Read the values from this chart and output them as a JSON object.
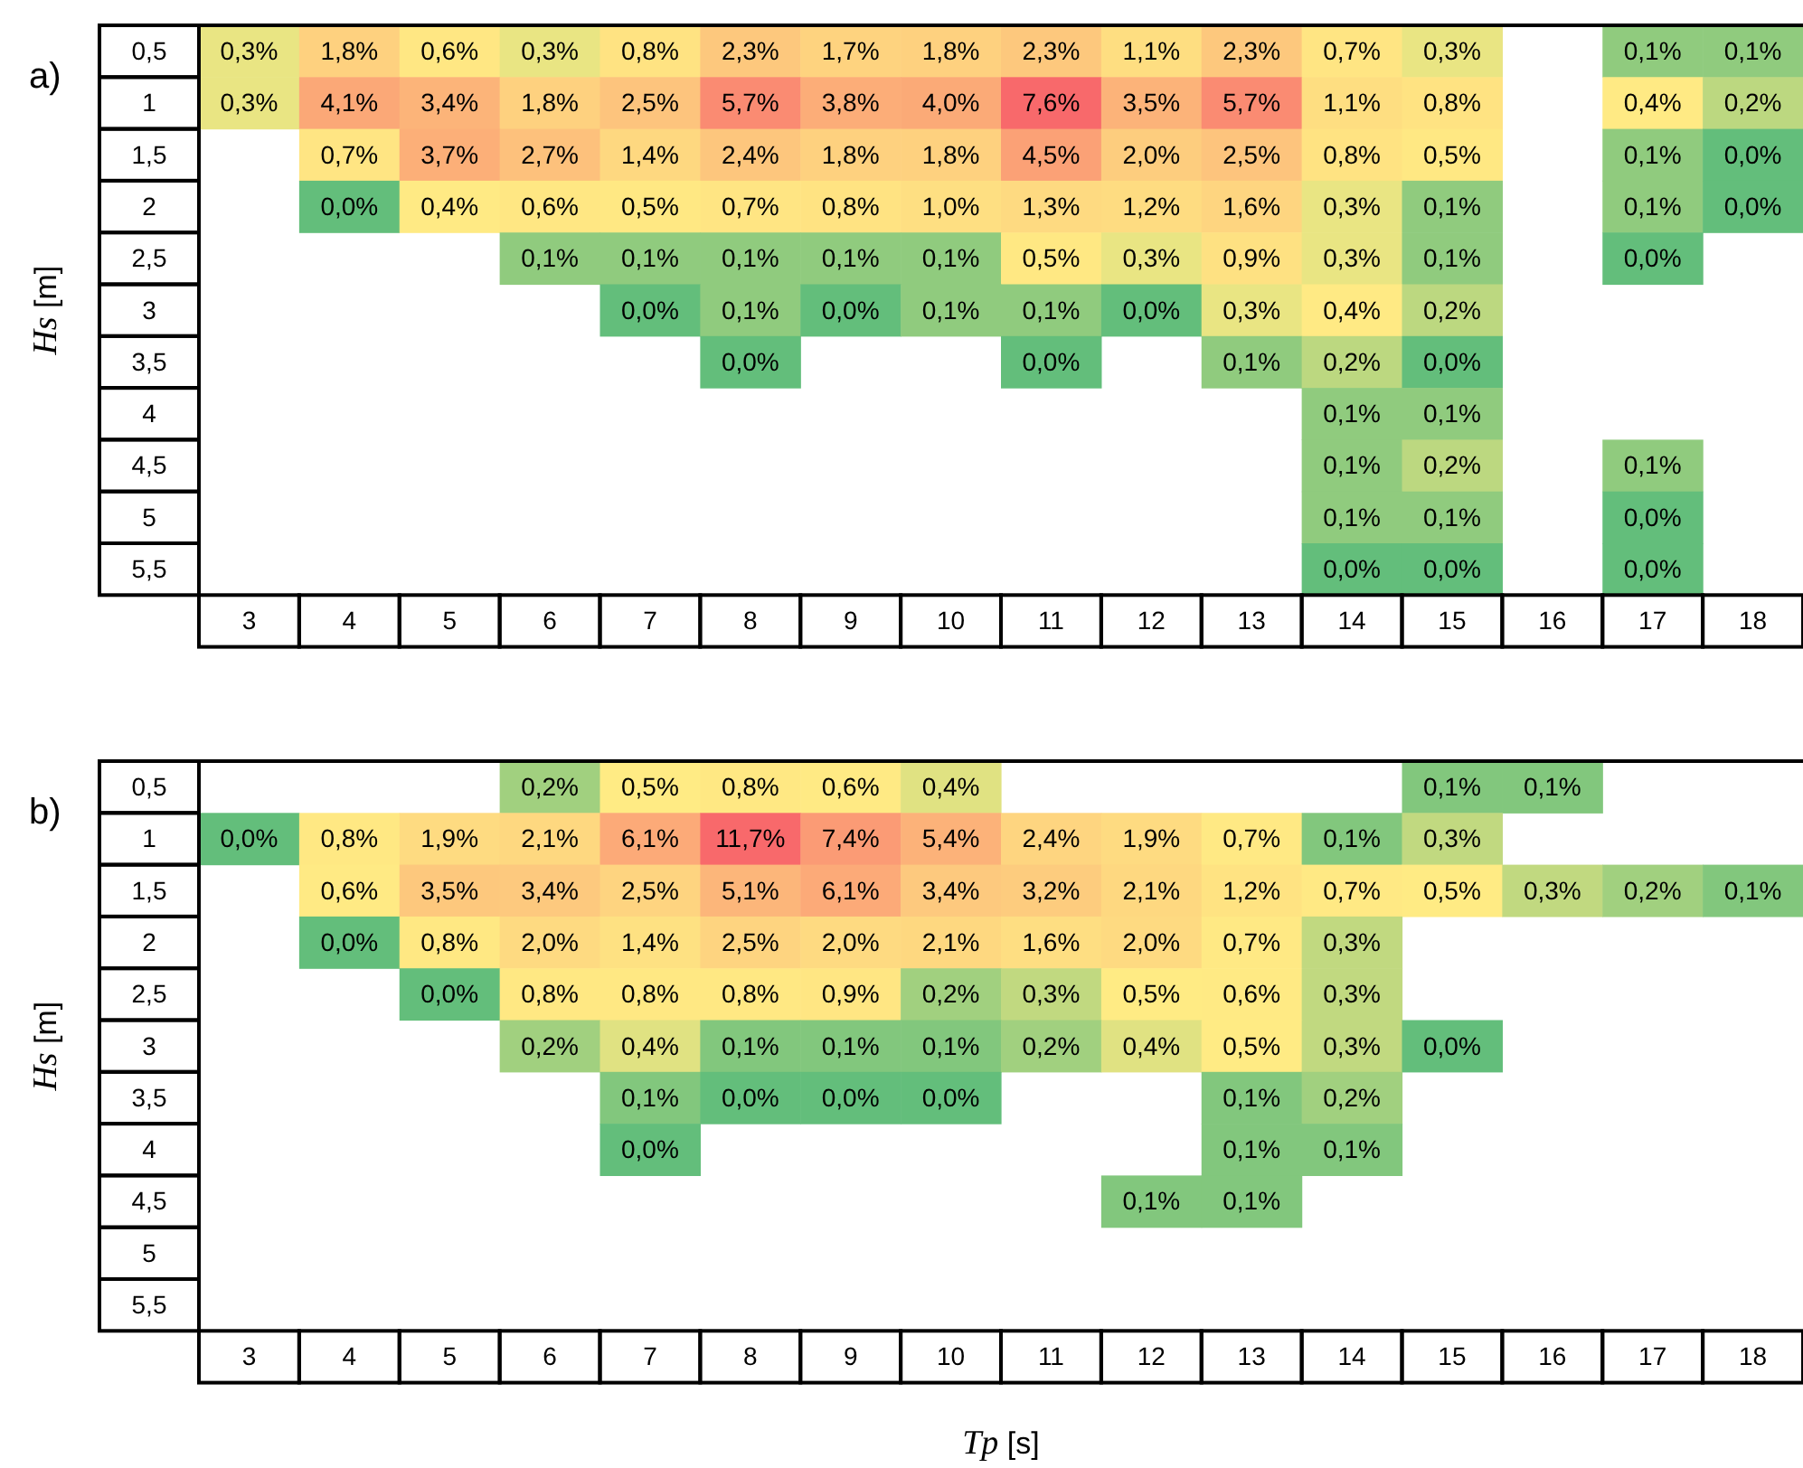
{
  "chart_data": [
    {
      "type": "heatmap",
      "title": "a)",
      "ylabel": "Hs [m]",
      "categories": [
        "3",
        "4",
        "5",
        "6",
        "7",
        "8",
        "9",
        "10",
        "11",
        "12",
        "13",
        "14",
        "15",
        "16",
        "17",
        "18"
      ],
      "y_categories": [
        "0,5",
        "1",
        "1,5",
        "2",
        "2,5",
        "3",
        "3,5",
        "4",
        "4,5",
        "5",
        "5,5"
      ],
      "cells": [
        [
          0.3,
          1.8,
          0.6,
          0.3,
          0.8,
          2.3,
          1.7,
          1.8,
          2.3,
          1.1,
          2.3,
          0.7,
          0.3,
          null,
          0.1,
          0.1
        ],
        [
          0.3,
          4.1,
          3.4,
          1.8,
          2.5,
          5.7,
          3.8,
          4.0,
          7.6,
          3.5,
          5.7,
          1.1,
          0.8,
          null,
          0.4,
          0.2
        ],
        [
          null,
          0.7,
          3.7,
          2.7,
          1.4,
          2.4,
          1.8,
          1.8,
          4.5,
          2.0,
          2.5,
          0.8,
          0.5,
          null,
          0.1,
          0.0
        ],
        [
          null,
          0.0,
          0.4,
          0.6,
          0.5,
          0.7,
          0.8,
          1.0,
          1.3,
          1.2,
          1.6,
          0.3,
          0.1,
          null,
          0.1,
          0.0
        ],
        [
          null,
          null,
          null,
          0.1,
          0.1,
          0.1,
          0.1,
          0.1,
          0.5,
          0.3,
          0.9,
          0.3,
          0.1,
          null,
          0.0,
          null
        ],
        [
          null,
          null,
          null,
          null,
          0.0,
          0.1,
          0.0,
          0.1,
          0.1,
          0.0,
          0.3,
          0.4,
          0.2,
          null,
          null,
          null
        ],
        [
          null,
          null,
          null,
          null,
          null,
          0.0,
          null,
          null,
          0.0,
          null,
          0.1,
          0.2,
          0.0,
          null,
          null,
          null
        ],
        [
          null,
          null,
          null,
          null,
          null,
          null,
          null,
          null,
          null,
          null,
          null,
          0.1,
          0.1,
          null,
          null,
          null
        ],
        [
          null,
          null,
          null,
          null,
          null,
          null,
          null,
          null,
          null,
          null,
          null,
          0.1,
          0.2,
          null,
          0.1,
          null
        ],
        [
          null,
          null,
          null,
          null,
          null,
          null,
          null,
          null,
          null,
          null,
          null,
          0.1,
          0.1,
          null,
          0.0,
          null
        ],
        [
          null,
          null,
          null,
          null,
          null,
          null,
          null,
          null,
          null,
          null,
          null,
          0.0,
          0.0,
          null,
          0.0,
          null
        ]
      ],
      "cell_labels": [
        [
          "0,3%",
          "1,8%",
          "0,6%",
          "0,3%",
          "0,8%",
          "2,3%",
          "1,7%",
          "1,8%",
          "2,3%",
          "1,1%",
          "2,3%",
          "0,7%",
          "0,3%",
          null,
          "0,1%",
          "0,1%"
        ],
        [
          "0,3%",
          "4,1%",
          "3,4%",
          "1,8%",
          "2,5%",
          "5,7%",
          "3,8%",
          "4,0%",
          "7,6%",
          "3,5%",
          "5,7%",
          "1,1%",
          "0,8%",
          null,
          "0,4%",
          "0,2%"
        ],
        [
          null,
          "0,7%",
          "3,7%",
          "2,7%",
          "1,4%",
          "2,4%",
          "1,8%",
          "1,8%",
          "4,5%",
          "2,0%",
          "2,5%",
          "0,8%",
          "0,5%",
          null,
          "0,1%",
          "0,0%"
        ],
        [
          null,
          "0,0%",
          "0,4%",
          "0,6%",
          "0,5%",
          "0,7%",
          "0,8%",
          "1,0%",
          "1,3%",
          "1,2%",
          "1,6%",
          "0,3%",
          "0,1%",
          null,
          "0,1%",
          "0,0%"
        ],
        [
          null,
          null,
          null,
          "0,1%",
          "0,1%",
          "0,1%",
          "0,1%",
          "0,1%",
          "0,5%",
          "0,3%",
          "0,9%",
          "0,3%",
          "0,1%",
          null,
          "0,0%",
          null
        ],
        [
          null,
          null,
          null,
          null,
          "0,0%",
          "0,1%",
          "0,0%",
          "0,1%",
          "0,1%",
          "0,0%",
          "0,3%",
          "0,4%",
          "0,2%",
          null,
          null,
          null
        ],
        [
          null,
          null,
          null,
          null,
          null,
          "0,0%",
          null,
          null,
          "0,0%",
          null,
          "0,1%",
          "0,2%",
          "0,0%",
          null,
          null,
          null
        ],
        [
          null,
          null,
          null,
          null,
          null,
          null,
          null,
          null,
          null,
          null,
          null,
          "0,1%",
          "0,1%",
          null,
          null,
          null
        ],
        [
          null,
          null,
          null,
          null,
          null,
          null,
          null,
          null,
          null,
          null,
          null,
          "0,1%",
          "0,2%",
          null,
          "0,1%",
          null
        ],
        [
          null,
          null,
          null,
          null,
          null,
          null,
          null,
          null,
          null,
          null,
          null,
          "0,1%",
          "0,1%",
          null,
          "0,0%",
          null
        ],
        [
          null,
          null,
          null,
          null,
          null,
          null,
          null,
          null,
          null,
          null,
          null,
          "0,0%",
          "0,0%",
          null,
          "0,0%",
          null
        ]
      ]
    },
    {
      "type": "heatmap",
      "title": "b)",
      "ylabel": "Hs [m]",
      "xlabel": "Tp [s]",
      "categories": [
        "3",
        "4",
        "5",
        "6",
        "7",
        "8",
        "9",
        "10",
        "11",
        "12",
        "13",
        "14",
        "15",
        "16",
        "17",
        "18"
      ],
      "y_categories": [
        "0,5",
        "1",
        "1,5",
        "2",
        "2,5",
        "3",
        "3,5",
        "4",
        "4,5",
        "5",
        "5,5"
      ],
      "cells": [
        [
          null,
          null,
          null,
          0.2,
          0.5,
          0.8,
          0.6,
          0.4,
          null,
          null,
          null,
          null,
          0.1,
          0.1,
          null,
          null
        ],
        [
          0.0,
          0.8,
          1.9,
          2.1,
          6.1,
          11.7,
          7.4,
          5.4,
          2.4,
          1.9,
          0.7,
          0.1,
          0.3,
          null,
          null,
          null
        ],
        [
          null,
          0.6,
          3.5,
          3.4,
          2.5,
          5.1,
          6.1,
          3.4,
          3.2,
          2.1,
          1.2,
          0.7,
          0.5,
          0.3,
          0.2,
          0.1
        ],
        [
          null,
          0.0,
          0.8,
          2.0,
          1.4,
          2.5,
          2.0,
          2.1,
          1.6,
          2.0,
          0.7,
          0.3,
          null,
          null,
          null,
          null
        ],
        [
          null,
          null,
          0.0,
          0.8,
          0.8,
          0.8,
          0.9,
          0.2,
          0.3,
          0.5,
          0.6,
          0.3,
          null,
          null,
          null,
          null
        ],
        [
          null,
          null,
          null,
          0.2,
          0.4,
          0.1,
          0.1,
          0.1,
          0.2,
          0.4,
          0.5,
          0.3,
          0.0,
          null,
          null,
          null
        ],
        [
          null,
          null,
          null,
          null,
          0.1,
          0.0,
          0.0,
          0.0,
          null,
          null,
          0.1,
          0.2,
          null,
          null,
          null,
          null
        ],
        [
          null,
          null,
          null,
          null,
          0.0,
          null,
          null,
          null,
          null,
          null,
          0.1,
          0.1,
          null,
          null,
          null,
          null
        ],
        [
          null,
          null,
          null,
          null,
          null,
          null,
          null,
          null,
          null,
          0.1,
          0.1,
          null,
          null,
          null,
          null,
          null
        ],
        [
          null,
          null,
          null,
          null,
          null,
          null,
          null,
          null,
          null,
          null,
          null,
          null,
          null,
          null,
          null,
          null
        ],
        [
          null,
          null,
          null,
          null,
          null,
          null,
          null,
          null,
          null,
          null,
          null,
          null,
          null,
          null,
          null,
          null
        ]
      ],
      "cell_labels": [
        [
          null,
          null,
          null,
          "0,2%",
          "0,5%",
          "0,8%",
          "0,6%",
          "0,4%",
          null,
          null,
          null,
          null,
          "0,1%",
          "0,1%",
          null,
          null
        ],
        [
          "0,0%",
          "0,8%",
          "1,9%",
          "2,1%",
          "6,1%",
          "11,7%",
          "7,4%",
          "5,4%",
          "2,4%",
          "1,9%",
          "0,7%",
          "0,1%",
          "0,3%",
          null,
          null,
          null
        ],
        [
          null,
          "0,6%",
          "3,5%",
          "3,4%",
          "2,5%",
          "5,1%",
          "6,1%",
          "3,4%",
          "3,2%",
          "2,1%",
          "1,2%",
          "0,7%",
          "0,5%",
          "0,3%",
          "0,2%",
          "0,1%"
        ],
        [
          null,
          "0,0%",
          "0,8%",
          "2,0%",
          "1,4%",
          "2,5%",
          "2,0%",
          "2,1%",
          "1,6%",
          "2,0%",
          "0,7%",
          "0,3%",
          null,
          null,
          null,
          null
        ],
        [
          null,
          null,
          "0,0%",
          "0,8%",
          "0,8%",
          "0,8%",
          "0,9%",
          "0,2%",
          "0,3%",
          "0,5%",
          "0,6%",
          "0,3%",
          null,
          null,
          null,
          null
        ],
        [
          null,
          null,
          null,
          "0,2%",
          "0,4%",
          "0,1%",
          "0,1%",
          "0,1%",
          "0,2%",
          "0,4%",
          "0,5%",
          "0,3%",
          "0,0%",
          null,
          null,
          null
        ],
        [
          null,
          null,
          null,
          null,
          "0,1%",
          "0,0%",
          "0,0%",
          "0,0%",
          null,
          null,
          "0,1%",
          "0,2%",
          null,
          null,
          null,
          null
        ],
        [
          null,
          null,
          null,
          null,
          "0,0%",
          null,
          null,
          null,
          null,
          null,
          "0,1%",
          "0,1%",
          null,
          null,
          null,
          null
        ],
        [
          null,
          null,
          null,
          null,
          null,
          null,
          null,
          null,
          null,
          "0,1%",
          "0,1%",
          null,
          null,
          null,
          null,
          null
        ],
        [
          null,
          null,
          null,
          null,
          null,
          null,
          null,
          null,
          null,
          null,
          null,
          null,
          null,
          null,
          null,
          null
        ],
        [
          null,
          null,
          null,
          null,
          null,
          null,
          null,
          null,
          null,
          null,
          null,
          null,
          null,
          null,
          null,
          null
        ]
      ]
    }
  ]
}
